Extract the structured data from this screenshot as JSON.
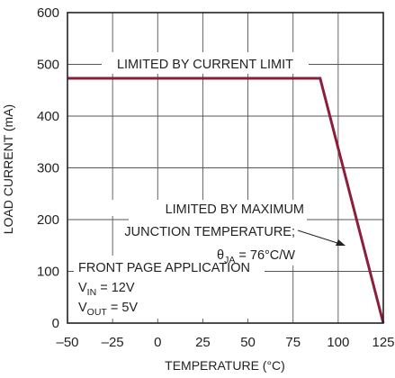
{
  "chart_data": {
    "type": "line",
    "xlabel": "TEMPERATURE (°C)",
    "ylabel": "LOAD CURRENT (mA)",
    "xlim": [
      -50,
      125
    ],
    "ylim": [
      0,
      600
    ],
    "xticks": [
      -50,
      -25,
      0,
      25,
      50,
      75,
      100,
      125
    ],
    "yticks": [
      0,
      100,
      200,
      300,
      400,
      500,
      600
    ],
    "xtick_labels": [
      "–50",
      "–25",
      "0",
      "25",
      "50",
      "75",
      "100",
      "125"
    ],
    "ytick_labels": [
      "0",
      "100",
      "200",
      "300",
      "400",
      "500",
      "600"
    ],
    "grid": true,
    "series": [
      {
        "x": [
          -50,
          90,
          125
        ],
        "y": [
          473,
          473,
          0
        ],
        "color": "#8c1e3c"
      }
    ],
    "annotations": {
      "current_limit": "LIMITED BY CURRENT LIMIT",
      "junction_line1": "LIMITED BY MAXIMUM",
      "junction_line2": "JUNCTION TEMPERATURE;",
      "theta_symbol": "θ",
      "theta_sub": "JA",
      "theta_value": " = 76°C/W",
      "app_title": "FRONT PAGE APPLICATION",
      "vin_symbol": "V",
      "vin_sub": "IN",
      "vin_value": " = 12V",
      "vout_symbol": "V",
      "vout_sub": "OUT",
      "vout_value": " = 5V"
    }
  }
}
